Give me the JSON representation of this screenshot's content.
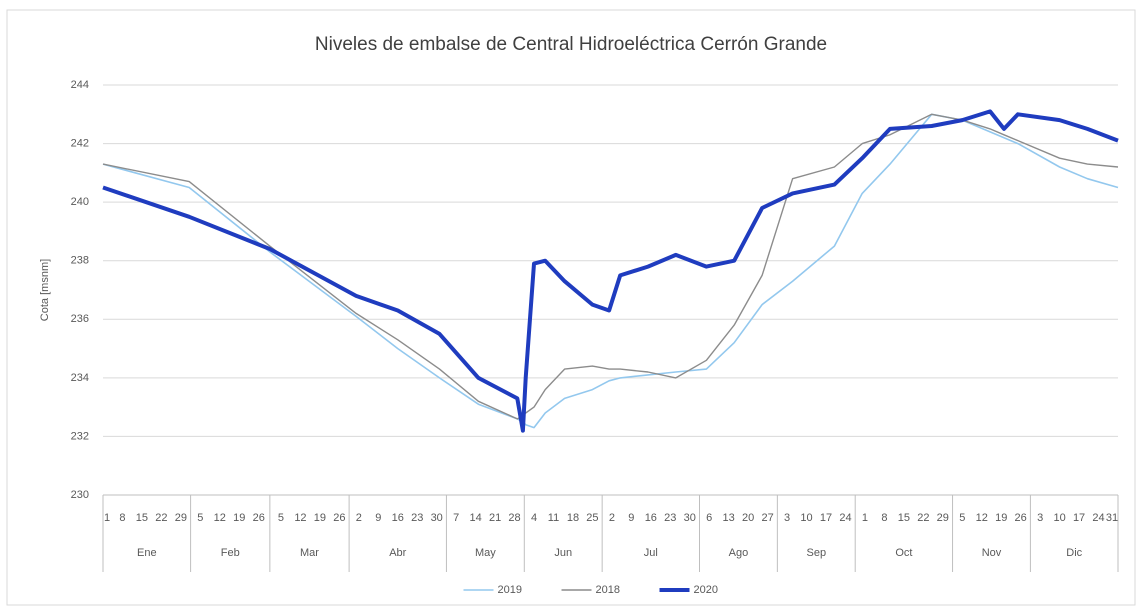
{
  "chart_data": {
    "type": "line",
    "title": "Niveles de embalse de Central Hidroeléctrica Cerrón Grande",
    "y_label": "Cota [msnm]",
    "x": [
      1,
      32,
      61,
      92,
      107,
      122,
      136,
      150,
      152,
      153,
      156,
      160,
      167,
      177,
      183,
      187,
      197,
      207,
      218,
      228,
      238,
      249,
      264,
      274,
      284,
      299,
      310,
      320,
      325,
      330,
      345,
      355,
      366
    ],
    "xlim": [
      1,
      366
    ],
    "months": [
      {
        "name": "Ene",
        "xticks": [
          1,
          8,
          15,
          22,
          29
        ]
      },
      {
        "name": "Feb",
        "xticks": [
          {
            "value": 36,
            "label": "5"
          },
          {
            "value": 43,
            "label": "12"
          },
          {
            "value": 50,
            "label": "19"
          },
          {
            "value": 57,
            "label": "26"
          }
        ]
      },
      {
        "name": "Mar",
        "xticks": [
          {
            "value": 65,
            "label": "5"
          },
          {
            "value": 72,
            "label": "12"
          },
          {
            "value": 79,
            "label": "19"
          },
          {
            "value": 86,
            "label": "26"
          }
        ]
      },
      {
        "name": "Abr",
        "xticks": [
          {
            "value": 93,
            "label": "2"
          },
          {
            "value": 100,
            "label": "9"
          },
          {
            "value": 107,
            "label": "16"
          },
          {
            "value": 114,
            "label": "23"
          },
          {
            "value": 121,
            "label": "30"
          }
        ]
      },
      {
        "name": "May",
        "xticks": [
          {
            "value": 128,
            "label": "7"
          },
          {
            "value": 135,
            "label": "14"
          },
          {
            "value": 142,
            "label": "21"
          },
          {
            "value": 149,
            "label": "28"
          }
        ]
      },
      {
        "name": "Jun",
        "xticks": [
          {
            "value": 156,
            "label": "4"
          },
          {
            "value": 163,
            "label": "11"
          },
          {
            "value": 170,
            "label": "18"
          },
          {
            "value": 177,
            "label": "25"
          }
        ]
      },
      {
        "name": "Jul",
        "xticks": [
          {
            "value": 184,
            "label": "2"
          },
          {
            "value": 191,
            "label": "9"
          },
          {
            "value": 198,
            "label": "16"
          },
          {
            "value": 205,
            "label": "23"
          },
          {
            "value": 212,
            "label": "30"
          }
        ]
      },
      {
        "name": "Ago",
        "xticks": [
          {
            "value": 219,
            "label": "6"
          },
          {
            "value": 226,
            "label": "13"
          },
          {
            "value": 233,
            "label": "20"
          },
          {
            "value": 240,
            "label": "27"
          }
        ]
      },
      {
        "name": "Sep",
        "xticks": [
          {
            "value": 247,
            "label": "3"
          },
          {
            "value": 254,
            "label": "10"
          },
          {
            "value": 261,
            "label": "17"
          },
          {
            "value": 268,
            "label": "24"
          }
        ]
      },
      {
        "name": "Oct",
        "xticks": [
          {
            "value": 275,
            "label": "1"
          },
          {
            "value": 282,
            "label": "8"
          },
          {
            "value": 289,
            "label": "15"
          },
          {
            "value": 296,
            "label": "22"
          },
          {
            "value": 303,
            "label": "29"
          }
        ]
      },
      {
        "name": "Nov",
        "xticks": [
          {
            "value": 310,
            "label": "5"
          },
          {
            "value": 317,
            "label": "12"
          },
          {
            "value": 324,
            "label": "19"
          },
          {
            "value": 331,
            "label": "26"
          }
        ]
      },
      {
        "name": "Dic",
        "xticks": [
          {
            "value": 338,
            "label": "3"
          },
          {
            "value": 345,
            "label": "10"
          },
          {
            "value": 352,
            "label": "17"
          },
          {
            "value": 359,
            "label": "24"
          },
          {
            "value": 366,
            "label": "31"
          }
        ]
      }
    ],
    "ylim": [
      230,
      244
    ],
    "yticks": [
      230,
      232,
      234,
      236,
      238,
      240,
      242,
      244
    ],
    "grid": true,
    "legend": "bottom",
    "series": [
      {
        "name": "2019",
        "color": "#93c8ee",
        "width": 1.6,
        "values": [
          241.3,
          240.5,
          238.3,
          236.1,
          235,
          234,
          233.1,
          232.6,
          232.5,
          232.4,
          232.3,
          232.8,
          233.3,
          233.6,
          233.9,
          234,
          234.1,
          234.2,
          234.3,
          235.2,
          236.5,
          237.3,
          238.5,
          240.3,
          241.3,
          243,
          242.8,
          242.4,
          242.2,
          242,
          241.2,
          240.8,
          240.5
        ]
      },
      {
        "name": "2018",
        "color": "#8c8c8c",
        "width": 1.4,
        "values": [
          241.3,
          240.7,
          238.5,
          236.2,
          235.3,
          234.3,
          233.2,
          232.6,
          232.7,
          232.8,
          233,
          233.6,
          234.3,
          234.4,
          234.3,
          234.3,
          234.2,
          234,
          234.6,
          235.8,
          237.5,
          240.8,
          241.2,
          242,
          242.3,
          243,
          242.8,
          242.5,
          242.3,
          242.1,
          241.5,
          241.3,
          241.2
        ]
      },
      {
        "name": "2020",
        "color": "#1f3cbf",
        "width": 4,
        "values": [
          240.5,
          239.5,
          238.4,
          236.8,
          236.3,
          235.5,
          234,
          233.3,
          232.2,
          234,
          237.9,
          238,
          237.3,
          236.5,
          236.3,
          237.5,
          237.8,
          238.2,
          237.8,
          238,
          239.8,
          240.3,
          240.6,
          241.5,
          242.5,
          242.6,
          242.8,
          243.1,
          242.5,
          243,
          242.8,
          242.5,
          242.1
        ]
      }
    ]
  }
}
